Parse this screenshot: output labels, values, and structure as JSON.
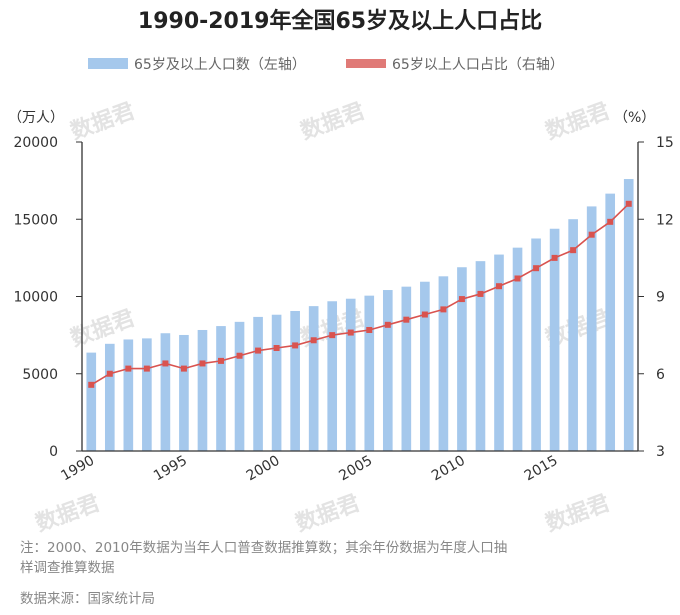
{
  "chart_data": {
    "type": "bar+line",
    "title": "1990-2019年全国65岁及以上人口占比",
    "legend": {
      "position": "top",
      "items": [
        {
          "label": "65岁及以上人口数（左轴）",
          "kind": "bar"
        },
        {
          "label": "65岁以上人口占比（右轴）",
          "kind": "line"
        }
      ]
    },
    "y_left": {
      "unit": "（万人）",
      "ticks": [
        0,
        5000,
        10000,
        15000,
        20000
      ],
      "ylim": [
        0,
        20000
      ]
    },
    "y_right": {
      "unit": "（%）",
      "ticks": [
        3,
        6,
        9,
        12,
        15
      ],
      "ylim": [
        3,
        15
      ]
    },
    "x_ticks": [
      "1990",
      "1995",
      "2000",
      "2005",
      "2010",
      "2015"
    ],
    "x": [
      1990,
      1991,
      1992,
      1993,
      1994,
      1995,
      1996,
      1997,
      1998,
      1999,
      2000,
      2001,
      2002,
      2003,
      2004,
      2005,
      2006,
      2007,
      2008,
      2009,
      2010,
      2011,
      2012,
      2013,
      2014,
      2015,
      2016,
      2017,
      2018,
      2019
    ],
    "series": [
      {
        "name": "65岁及以上人口数（左轴）",
        "type": "bar",
        "axis": "left",
        "values": [
          6368,
          6938,
          7218,
          7289,
          7622,
          7510,
          7833,
          8085,
          8359,
          8679,
          8821,
          9062,
          9377,
          9692,
          9857,
          10055,
          10419,
          10636,
          10956,
          11307,
          11894,
          12288,
          12714,
          13161,
          13755,
          14386,
          15003,
          15831,
          16658,
          17603
        ]
      },
      {
        "name": "65岁以上人口占比（右轴）",
        "type": "line",
        "axis": "right",
        "values": [
          5.57,
          6.0,
          6.2,
          6.2,
          6.4,
          6.2,
          6.4,
          6.5,
          6.7,
          6.9,
          7.0,
          7.1,
          7.3,
          7.5,
          7.6,
          7.7,
          7.9,
          8.1,
          8.3,
          8.5,
          8.9,
          9.1,
          9.4,
          9.7,
          10.1,
          10.5,
          10.8,
          11.4,
          11.9,
          12.6
        ]
      }
    ],
    "colors": {
      "bar": "#a5c8ec",
      "line": "#d9534f",
      "axis": "#333333",
      "muted": "#888888"
    }
  },
  "watermark": "数据君",
  "notes": {
    "footnote_line1": "注：2000、2010年数据为当年人口普查数据推算数；其余年份数据为年度人口抽",
    "footnote_line2": "样调查推算数据",
    "source": "数据来源：国家统计局"
  }
}
